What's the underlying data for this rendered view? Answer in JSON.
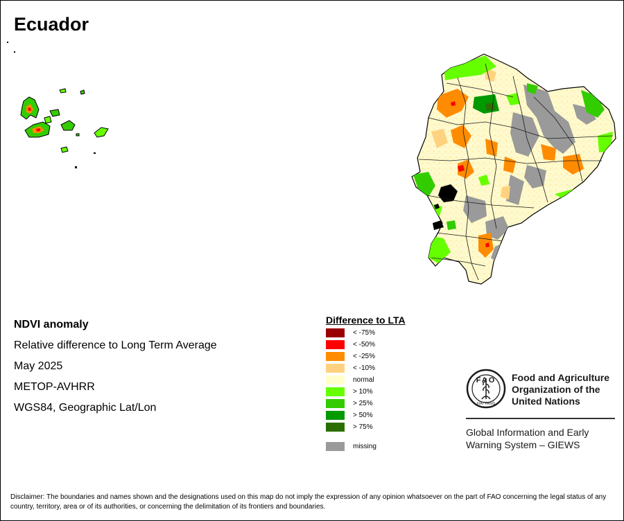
{
  "title": "Ecuador",
  "info": {
    "line1": "NDVI anomaly",
    "line2": "Relative difference to Long Term Average",
    "line3": "May 2025",
    "line4": "METOP-AVHRR",
    "line5": "WGS84, Geographic Lat/Lon"
  },
  "legend": {
    "title": "Difference to LTA",
    "items": [
      {
        "label": "< -75%",
        "color": "#9b0000"
      },
      {
        "label": "< -50%",
        "color": "#ff0000"
      },
      {
        "label": "< -25%",
        "color": "#ff8c00"
      },
      {
        "label": "< -10%",
        "color": "#ffd27f"
      },
      {
        "label": "normal",
        "color": "#ffffcc"
      },
      {
        "label": "> 10%",
        "color": "#66ff00"
      },
      {
        "label": "> 25%",
        "color": "#33cc00"
      },
      {
        "label": "> 50%",
        "color": "#009900"
      },
      {
        "label": "> 75%",
        "color": "#2a6e00"
      },
      {
        "label": "missing",
        "color": "#9a9a9a"
      }
    ]
  },
  "org": {
    "logo_letters": "FAO",
    "logo_motto": "FIAT PANIS",
    "name_line1": "Food and Agriculture",
    "name_line2": "Organization of the",
    "name_line3": "United Nations",
    "giews_line1": "Global Information and Early",
    "giews_line2": "Warning System – GIEWS"
  },
  "disclaimer": "Disclaimer: The boundaries and names shown and the designations used on this map do not imply the expression of any opinion whatsoever on the part of FAO concerning the legal status of any country, territory, area or of its authorities, or concerning the delimitation of its frontiers and boundaries."
}
